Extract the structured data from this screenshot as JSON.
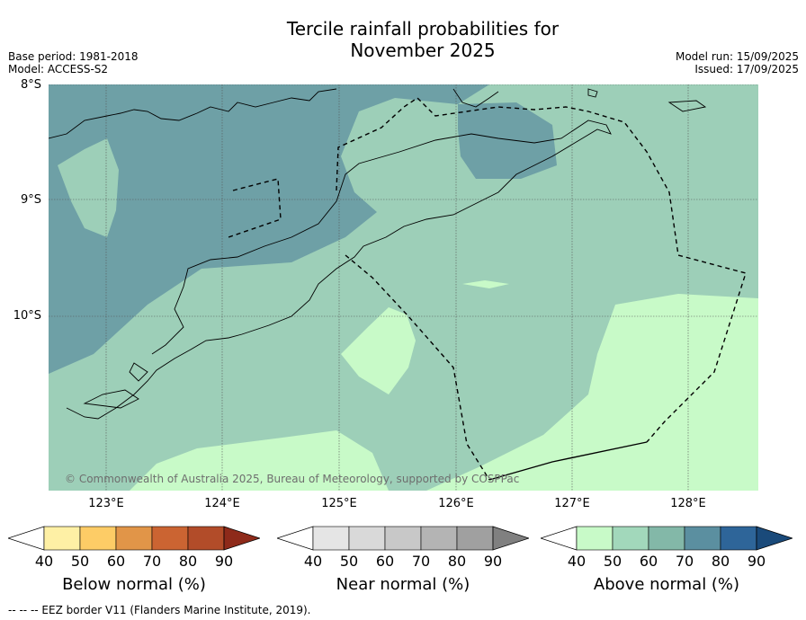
{
  "title_line1": "Tercile rainfall probabilities for",
  "title_line2": "November 2025",
  "base_period": "Base period: 1981-2018",
  "model": "Model: ACCESS-S2",
  "model_run": "Model run: 15/09/2025",
  "issued": "Issued: 17/09/2025",
  "lat_labels": [
    "8°S",
    "9°S",
    "10°S"
  ],
  "lon_labels": [
    "123°E",
    "124°E",
    "125°E",
    "126°E",
    "127°E",
    "128°E"
  ],
  "copyright": "© Commonwealth of Australia 2025, Bureau of Meteorology, supported by COSPPac",
  "colorbars": [
    {
      "label": "Below normal (%)",
      "ticks": [
        "40",
        "50",
        "60",
        "70",
        "80",
        "90"
      ],
      "colors": [
        "#ffffff",
        "#fef0a5",
        "#fdcc66",
        "#e19548",
        "#cb6432",
        "#b24c29",
        "#8e2a1a"
      ]
    },
    {
      "label": "Near normal (%)",
      "ticks": [
        "40",
        "50",
        "60",
        "70",
        "80",
        "90"
      ],
      "colors": [
        "#ffffff",
        "#e5e5e5",
        "#d9d9d9",
        "#c8c8c8",
        "#b4b4b4",
        "#a0a0a0",
        "#808080"
      ]
    },
    {
      "label": "Above normal (%)",
      "ticks": [
        "40",
        "50",
        "60",
        "70",
        "80",
        "90"
      ],
      "colors": [
        "#ffffff",
        "#c8fac8",
        "#a2d8bb",
        "#83b8a8",
        "#5b8fa0",
        "#2e6599",
        "#1a4a7a"
      ]
    }
  ],
  "map_colors": {
    "ocean_70": "#6ea0a6",
    "zone_60": "#9dcfb8",
    "zone_50": "#c8fac8"
  },
  "footnote": "--  --  -- EEZ border V11 (Flanders Marine Institute, 2019)."
}
